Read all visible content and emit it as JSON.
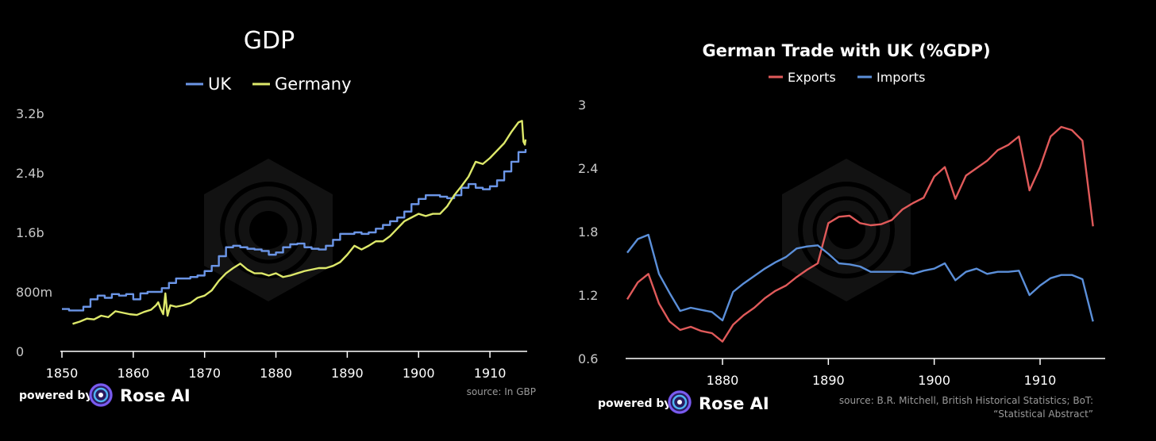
{
  "colors": {
    "uk": "#6b95e6",
    "germany": "#dde86a",
    "exports": "#e05a5a",
    "imports": "#5b8fd9",
    "axis": "#ffffff",
    "tick_text": "#c8c8c8"
  },
  "branding": {
    "powered_by": "powered by",
    "brand_name": "Rose AI"
  },
  "chart_data": [
    {
      "type": "line",
      "title": "GDP",
      "source": "source: In GBP",
      "xlim": [
        1850,
        1915
      ],
      "ylim": [
        0,
        3200000000
      ],
      "x_ticks": [
        1850,
        1860,
        1870,
        1880,
        1890,
        1900,
        1910
      ],
      "x_tick_labels": [
        "1850",
        "1860",
        "1870",
        "1880",
        "1890",
        "1900",
        "1910"
      ],
      "y_ticks": [
        0,
        800000000,
        1600000000,
        2400000000,
        3200000000
      ],
      "y_tick_labels": [
        "0",
        "800m",
        "1.6b",
        "2.4b",
        "3.2b"
      ],
      "series": [
        {
          "name": "UK",
          "color_key": "uk",
          "step": true,
          "points": [
            [
              1850,
              0.57
            ],
            [
              1851,
              0.55
            ],
            [
              1852,
              0.55
            ],
            [
              1853,
              0.6
            ],
            [
              1854,
              0.7
            ],
            [
              1855,
              0.75
            ],
            [
              1856,
              0.72
            ],
            [
              1857,
              0.77
            ],
            [
              1858,
              0.75
            ],
            [
              1859,
              0.77
            ],
            [
              1860,
              0.7
            ],
            [
              1861,
              0.78
            ],
            [
              1862,
              0.8
            ],
            [
              1863,
              0.8
            ],
            [
              1864,
              0.85
            ],
            [
              1865,
              0.92
            ],
            [
              1866,
              0.98
            ],
            [
              1867,
              0.98
            ],
            [
              1868,
              1.0
            ],
            [
              1869,
              1.02
            ],
            [
              1870,
              1.08
            ],
            [
              1871,
              1.15
            ],
            [
              1872,
              1.28
            ],
            [
              1873,
              1.4
            ],
            [
              1874,
              1.42
            ],
            [
              1875,
              1.4
            ],
            [
              1876,
              1.38
            ],
            [
              1877,
              1.37
            ],
            [
              1878,
              1.35
            ],
            [
              1879,
              1.3
            ],
            [
              1880,
              1.33
            ],
            [
              1881,
              1.4
            ],
            [
              1882,
              1.44
            ],
            [
              1883,
              1.45
            ],
            [
              1884,
              1.4
            ],
            [
              1885,
              1.38
            ],
            [
              1886,
              1.37
            ],
            [
              1887,
              1.42
            ],
            [
              1888,
              1.5
            ],
            [
              1889,
              1.58
            ],
            [
              1890,
              1.58
            ],
            [
              1891,
              1.6
            ],
            [
              1892,
              1.58
            ],
            [
              1893,
              1.6
            ],
            [
              1894,
              1.65
            ],
            [
              1895,
              1.7
            ],
            [
              1896,
              1.75
            ],
            [
              1897,
              1.8
            ],
            [
              1898,
              1.88
            ],
            [
              1899,
              1.98
            ],
            [
              1900,
              2.05
            ],
            [
              1901,
              2.1
            ],
            [
              1902,
              2.1
            ],
            [
              1903,
              2.08
            ],
            [
              1904,
              2.06
            ],
            [
              1905,
              2.1
            ],
            [
              1906,
              2.2
            ],
            [
              1907,
              2.25
            ],
            [
              1908,
              2.2
            ],
            [
              1909,
              2.18
            ],
            [
              1910,
              2.22
            ],
            [
              1911,
              2.3
            ],
            [
              1912,
              2.42
            ],
            [
              1913,
              2.55
            ],
            [
              1914,
              2.68
            ],
            [
              1915,
              2.72
            ]
          ]
        },
        {
          "name": "Germany",
          "color_key": "germany",
          "step": false,
          "points": [
            [
              1851.5,
              0.37
            ],
            [
              1852.5,
              0.4
            ],
            [
              1853.5,
              0.44
            ],
            [
              1854.5,
              0.43
            ],
            [
              1855.5,
              0.48
            ],
            [
              1856.5,
              0.46
            ],
            [
              1857.5,
              0.54
            ],
            [
              1858.5,
              0.52
            ],
            [
              1859.5,
              0.5
            ],
            [
              1860.5,
              0.49
            ],
            [
              1861.5,
              0.53
            ],
            [
              1862.5,
              0.56
            ],
            [
              1863.2,
              0.62
            ],
            [
              1863.5,
              0.66
            ],
            [
              1863.8,
              0.58
            ],
            [
              1864.2,
              0.5
            ],
            [
              1864.5,
              0.78
            ],
            [
              1864.8,
              0.48
            ],
            [
              1865.2,
              0.62
            ],
            [
              1866,
              0.6
            ],
            [
              1867,
              0.62
            ],
            [
              1868,
              0.65
            ],
            [
              1869,
              0.72
            ],
            [
              1870,
              0.75
            ],
            [
              1871,
              0.82
            ],
            [
              1872,
              0.95
            ],
            [
              1873,
              1.05
            ],
            [
              1874,
              1.12
            ],
            [
              1875,
              1.18
            ],
            [
              1876,
              1.1
            ],
            [
              1877,
              1.05
            ],
            [
              1878,
              1.05
            ],
            [
              1879,
              1.02
            ],
            [
              1880,
              1.05
            ],
            [
              1881,
              1.0
            ],
            [
              1882,
              1.02
            ],
            [
              1883,
              1.05
            ],
            [
              1884,
              1.08
            ],
            [
              1885,
              1.1
            ],
            [
              1886,
              1.12
            ],
            [
              1887,
              1.12
            ],
            [
              1888,
              1.15
            ],
            [
              1889,
              1.2
            ],
            [
              1890,
              1.3
            ],
            [
              1891,
              1.42
            ],
            [
              1892,
              1.37
            ],
            [
              1893,
              1.42
            ],
            [
              1894,
              1.48
            ],
            [
              1895,
              1.48
            ],
            [
              1896,
              1.55
            ],
            [
              1897,
              1.65
            ],
            [
              1898,
              1.75
            ],
            [
              1899,
              1.8
            ],
            [
              1900,
              1.85
            ],
            [
              1901,
              1.82
            ],
            [
              1902,
              1.85
            ],
            [
              1903,
              1.85
            ],
            [
              1904,
              1.95
            ],
            [
              1905,
              2.1
            ],
            [
              1906,
              2.22
            ],
            [
              1907,
              2.35
            ],
            [
              1908,
              2.55
            ],
            [
              1909,
              2.52
            ],
            [
              1910,
              2.6
            ],
            [
              1911,
              2.7
            ],
            [
              1912,
              2.8
            ],
            [
              1913,
              2.95
            ],
            [
              1914,
              3.08
            ],
            [
              1914.5,
              3.1
            ],
            [
              1914.7,
              2.82
            ],
            [
              1914.9,
              2.78
            ],
            [
              1915,
              2.85
            ]
          ]
        }
      ]
    },
    {
      "type": "line",
      "title": "German Trade with UK (%GDP)",
      "source_line1": "source: B.R. Mitchell, British Historical Statistics; BoT:",
      "source_line2": "“Statistical Abstract”",
      "xlim": [
        1871,
        1916
      ],
      "ylim": [
        0.6,
        3.0
      ],
      "x_ticks": [
        1880,
        1890,
        1900,
        1910
      ],
      "x_tick_labels": [
        "1880",
        "1890",
        "1900",
        "1910"
      ],
      "y_ticks": [
        0.6,
        1.2,
        1.8,
        2.4,
        3.0
      ],
      "y_tick_labels": [
        "0.6",
        "1.2",
        "1.8",
        "2.4",
        "3"
      ],
      "series": [
        {
          "name": "Exports",
          "color_key": "exports",
          "points": [
            [
              1871,
              1.16
            ],
            [
              1872,
              1.32
            ],
            [
              1873,
              1.4
            ],
            [
              1874,
              1.12
            ],
            [
              1875,
              0.95
            ],
            [
              1876,
              0.87
            ],
            [
              1877,
              0.9
            ],
            [
              1878,
              0.86
            ],
            [
              1879,
              0.84
            ],
            [
              1880,
              0.76
            ],
            [
              1881,
              0.92
            ],
            [
              1882,
              1.01
            ],
            [
              1883,
              1.08
            ],
            [
              1884,
              1.17
            ],
            [
              1885,
              1.24
            ],
            [
              1886,
              1.29
            ],
            [
              1887,
              1.37
            ],
            [
              1888,
              1.44
            ],
            [
              1889,
              1.5
            ],
            [
              1890,
              1.88
            ],
            [
              1891,
              1.94
            ],
            [
              1892,
              1.95
            ],
            [
              1893,
              1.88
            ],
            [
              1894,
              1.86
            ],
            [
              1895,
              1.87
            ],
            [
              1896,
              1.91
            ],
            [
              1897,
              2.01
            ],
            [
              1898,
              2.07
            ],
            [
              1899,
              2.12
            ],
            [
              1900,
              2.32
            ],
            [
              1901,
              2.41
            ],
            [
              1902,
              2.11
            ],
            [
              1903,
              2.33
            ],
            [
              1904,
              2.4
            ],
            [
              1905,
              2.47
            ],
            [
              1906,
              2.57
            ],
            [
              1907,
              2.62
            ],
            [
              1908,
              2.7
            ],
            [
              1909,
              2.19
            ],
            [
              1910,
              2.41
            ],
            [
              1911,
              2.7
            ],
            [
              1912,
              2.79
            ],
            [
              1913,
              2.76
            ],
            [
              1914,
              2.66
            ],
            [
              1915,
              1.85
            ]
          ]
        },
        {
          "name": "Imports",
          "color_key": "imports",
          "points": [
            [
              1871,
              1.6
            ],
            [
              1872,
              1.73
            ],
            [
              1873,
              1.77
            ],
            [
              1874,
              1.4
            ],
            [
              1875,
              1.22
            ],
            [
              1876,
              1.05
            ],
            [
              1877,
              1.08
            ],
            [
              1878,
              1.06
            ],
            [
              1879,
              1.04
            ],
            [
              1880,
              0.96
            ],
            [
              1881,
              1.23
            ],
            [
              1882,
              1.31
            ],
            [
              1883,
              1.38
            ],
            [
              1884,
              1.45
            ],
            [
              1885,
              1.51
            ],
            [
              1886,
              1.56
            ],
            [
              1887,
              1.64
            ],
            [
              1888,
              1.66
            ],
            [
              1889,
              1.67
            ],
            [
              1890,
              1.59
            ],
            [
              1891,
              1.5
            ],
            [
              1892,
              1.49
            ],
            [
              1893,
              1.47
            ],
            [
              1894,
              1.42
            ],
            [
              1895,
              1.42
            ],
            [
              1896,
              1.42
            ],
            [
              1897,
              1.42
            ],
            [
              1898,
              1.4
            ],
            [
              1899,
              1.43
            ],
            [
              1900,
              1.45
            ],
            [
              1901,
              1.5
            ],
            [
              1902,
              1.34
            ],
            [
              1903,
              1.42
            ],
            [
              1904,
              1.45
            ],
            [
              1905,
              1.4
            ],
            [
              1906,
              1.42
            ],
            [
              1907,
              1.42
            ],
            [
              1908,
              1.43
            ],
            [
              1909,
              1.2
            ],
            [
              1910,
              1.29
            ],
            [
              1911,
              1.36
            ],
            [
              1912,
              1.39
            ],
            [
              1913,
              1.39
            ],
            [
              1914,
              1.35
            ],
            [
              1915,
              0.95
            ]
          ]
        }
      ]
    }
  ]
}
